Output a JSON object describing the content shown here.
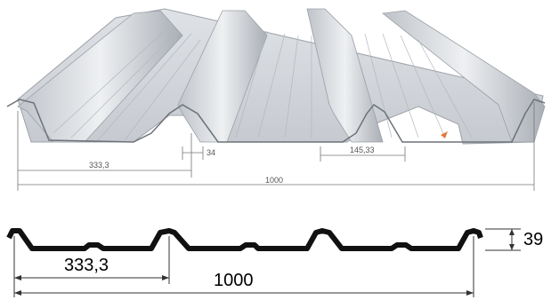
{
  "render_view": {
    "pitch": "333,3",
    "rib_depth": "34",
    "pan_width": "145,33",
    "total_width": "1000"
  },
  "profile_drawing": {
    "pitch": "333,3",
    "total_width": "1000",
    "height": "39"
  },
  "colors": {
    "sheet_light": "#e9ebee",
    "sheet_mid": "#c9cdd3",
    "sheet_dark": "#9ea3aa",
    "profile_line": "#111111",
    "accent": "#e07b3a"
  }
}
